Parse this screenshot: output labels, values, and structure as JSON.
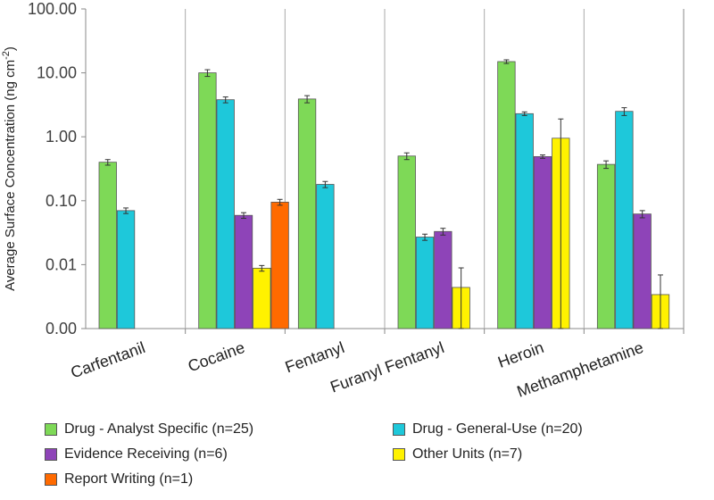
{
  "chart_data": {
    "type": "bar",
    "yscale": "log",
    "ylabel": "Average Surface Concentration (ng cm",
    "ylabel_sup": "-2",
    "ylabel_end": ")",
    "ylim": [
      0.001,
      100
    ],
    "yticks": [
      {
        "value": 0.001,
        "label": "0.00"
      },
      {
        "value": 0.01,
        "label": "0.01"
      },
      {
        "value": 0.1,
        "label": "0.10"
      },
      {
        "value": 1,
        "label": "1.00"
      },
      {
        "value": 10,
        "label": "10.00"
      },
      {
        "value": 100,
        "label": "100.00"
      }
    ],
    "categories": [
      "Carfentanil",
      "Cocaine",
      "Fentanyl",
      "Furanyl Fentanyl",
      "Heroin",
      "Methamphetamine"
    ],
    "series": [
      {
        "name": "Drug - Analyst Specific (n=25)",
        "color": "#7ED957",
        "values": [
          0.4,
          10.0,
          3.9,
          0.5,
          15.0,
          0.37
        ],
        "errors": [
          0.04,
          1.2,
          0.5,
          0.06,
          1.0,
          0.05
        ]
      },
      {
        "name": "Drug - General-Use (n=20)",
        "color": "#1EC8DA",
        "values": [
          0.07,
          3.8,
          0.18,
          0.027,
          2.3,
          2.5
        ],
        "errors": [
          0.007,
          0.4,
          0.02,
          0.003,
          0.15,
          0.35
        ]
      },
      {
        "name": "Evidence Receiving (n=6)",
        "color": "#8E44B8",
        "values": [
          null,
          0.059,
          null,
          0.033,
          0.49,
          0.062
        ],
        "errors": [
          null,
          0.006,
          null,
          0.004,
          0.03,
          0.008
        ]
      },
      {
        "name": "Other Units (n=7)",
        "color": "#FFF200",
        "values": [
          null,
          0.0088,
          null,
          0.0044,
          0.95,
          0.0034
        ],
        "errors": [
          null,
          0.0009,
          null,
          0.0045,
          0.95,
          0.0035
        ]
      },
      {
        "name": "Report Writing (n=1)",
        "color": "#FF6A00",
        "values": [
          null,
          0.095,
          null,
          null,
          null,
          null
        ],
        "errors": [
          null,
          0.01,
          null,
          null,
          null,
          null
        ]
      }
    ],
    "grid": "vertical-separators",
    "legend": "bottom"
  }
}
